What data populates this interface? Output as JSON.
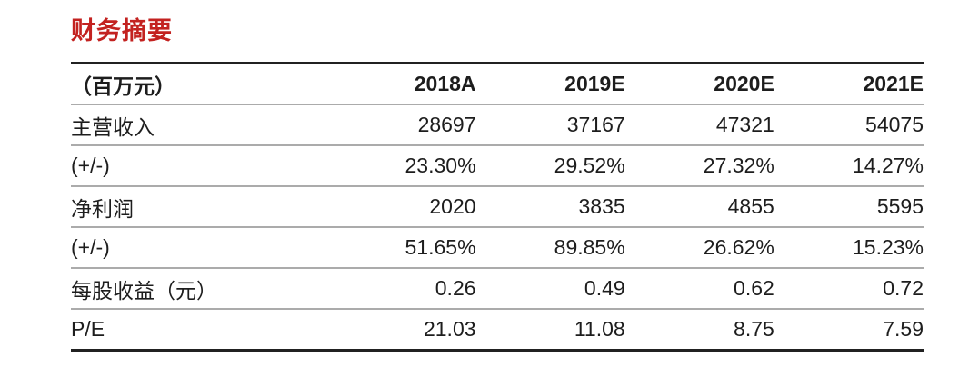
{
  "page": {
    "title": "财务摘要",
    "accent_color": "#c32220"
  },
  "chart_data": {
    "type": "table",
    "title": "财务摘要",
    "unit_header": "（百万元）",
    "columns": [
      "2018A",
      "2019E",
      "2020E",
      "2021E"
    ],
    "rows": [
      {
        "label": "主营收入",
        "values": [
          "28697",
          "37167",
          "47321",
          "54075"
        ]
      },
      {
        "label": "(+/-)",
        "values": [
          "23.30%",
          "29.52%",
          "27.32%",
          "14.27%"
        ]
      },
      {
        "label": "净利润",
        "values": [
          "2020",
          "3835",
          "4855",
          "5595"
        ]
      },
      {
        "label": "(+/-)",
        "values": [
          "51.65%",
          "89.85%",
          "26.62%",
          "15.23%"
        ]
      },
      {
        "label": "每股收益（元）",
        "values": [
          "0.26",
          "0.49",
          "0.62",
          "0.72"
        ]
      },
      {
        "label": "P/E",
        "values": [
          "21.03",
          "11.08",
          "8.75",
          "7.59"
        ]
      }
    ]
  }
}
